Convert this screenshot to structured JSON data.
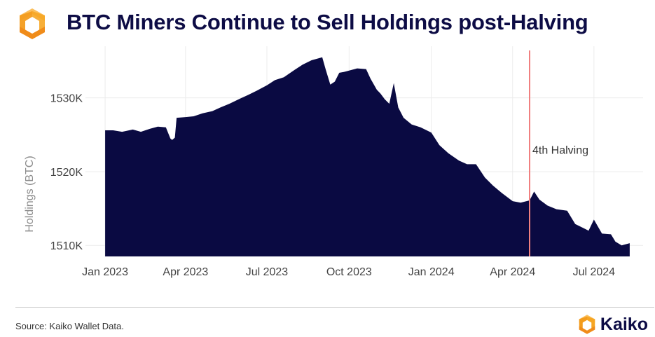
{
  "header": {
    "title": "BTC Miners Continue to Sell Holdings post-Halving"
  },
  "colors": {
    "title": "#0d0c45",
    "area": "#0a0a42",
    "halving_line": "#f08080",
    "logo_orange": "#f39c1d",
    "logo_orange_light": "#fbbf5c"
  },
  "footer": {
    "source": "Source: Kaiko Wallet Data.",
    "brand": "Kaiko"
  },
  "chart_data": {
    "type": "area",
    "title": "BTC Miners Continue to Sell Holdings post-Halving",
    "xlabel": "",
    "ylabel": "Holdings (BTC)",
    "ylim": [
      1508500,
      1537000
    ],
    "xlim": [
      "2022-12-10",
      "2024-08-25"
    ],
    "grid": true,
    "x_ticks": [
      {
        "date": "2023-01-01",
        "label": "Jan 2023"
      },
      {
        "date": "2023-04-01",
        "label": "Apr 2023"
      },
      {
        "date": "2023-07-01",
        "label": "Jul 2023"
      },
      {
        "date": "2023-10-01",
        "label": "Oct 2023"
      },
      {
        "date": "2024-01-01",
        "label": "Jan 2024"
      },
      {
        "date": "2024-04-01",
        "label": "Apr 2024"
      },
      {
        "date": "2024-07-01",
        "label": "Jul 2024"
      }
    ],
    "y_ticks": [
      {
        "value": 1510000,
        "label": "1510K"
      },
      {
        "value": 1520000,
        "label": "1520K"
      },
      {
        "value": 1530000,
        "label": "1530K"
      }
    ],
    "series": [
      {
        "x": [
          "2023-01-01",
          "2023-01-10",
          "2023-01-20",
          "2023-02-01",
          "2023-02-10",
          "2023-02-20",
          "2023-03-01",
          "2023-03-10",
          "2023-03-15",
          "2023-03-17",
          "2023-03-20",
          "2023-03-22",
          "2023-04-01",
          "2023-04-10",
          "2023-04-20",
          "2023-05-01",
          "2023-05-10",
          "2023-05-20",
          "2023-06-01",
          "2023-06-10",
          "2023-06-20",
          "2023-07-01",
          "2023-07-10",
          "2023-07-20",
          "2023-08-01",
          "2023-08-10",
          "2023-08-20",
          "2023-09-01",
          "2023-09-05",
          "2023-09-10",
          "2023-09-15",
          "2023-09-20",
          "2023-09-25",
          "2023-10-01",
          "2023-10-10",
          "2023-10-20",
          "2023-10-25",
          "2023-11-01",
          "2023-11-05",
          "2023-11-10",
          "2023-11-15",
          "2023-11-20",
          "2023-11-25",
          "2023-12-01",
          "2023-12-10",
          "2023-12-20",
          "2024-01-01",
          "2024-01-10",
          "2024-01-20",
          "2024-02-01",
          "2024-02-10",
          "2024-02-20",
          "2024-03-01",
          "2024-03-10",
          "2024-03-20",
          "2024-04-01",
          "2024-04-10",
          "2024-04-20",
          "2024-04-25",
          "2024-05-01",
          "2024-05-10",
          "2024-05-20",
          "2024-06-01",
          "2024-06-10",
          "2024-06-20",
          "2024-06-25",
          "2024-07-01",
          "2024-07-10",
          "2024-07-20",
          "2024-07-25",
          "2024-08-01",
          "2024-08-10"
        ],
        "values": [
          1525600,
          1525600,
          1525400,
          1525700,
          1525400,
          1525800,
          1526100,
          1526000,
          1524500,
          1524300,
          1524600,
          1527300,
          1527400,
          1527500,
          1527900,
          1528200,
          1528700,
          1529200,
          1529900,
          1530400,
          1531000,
          1531700,
          1532400,
          1532800,
          1533800,
          1534500,
          1535100,
          1535500,
          1533800,
          1531800,
          1532200,
          1533400,
          1533500,
          1533700,
          1534000,
          1533900,
          1532600,
          1531100,
          1530600,
          1529800,
          1529200,
          1532000,
          1528700,
          1527300,
          1526400,
          1526000,
          1525300,
          1523600,
          1522500,
          1521500,
          1521000,
          1521000,
          1519200,
          1518100,
          1517100,
          1516000,
          1515800,
          1516100,
          1517300,
          1516200,
          1515400,
          1514900,
          1514700,
          1512900,
          1512300,
          1512000,
          1513500,
          1511600,
          1511500,
          1510500,
          1510000,
          1510300
        ]
      }
    ],
    "annotations": [
      {
        "type": "vline",
        "date": "2024-04-20",
        "label": "4th Halving",
        "label_value": 1523000
      }
    ]
  }
}
